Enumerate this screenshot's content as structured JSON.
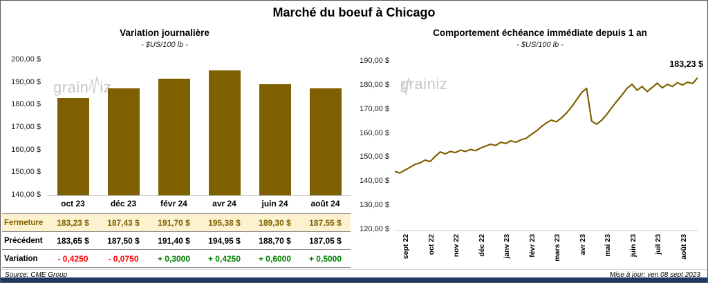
{
  "page": {
    "title": "Marché du boeuf à Chicago",
    "source": "Source: CME Group",
    "updated": "Mise à jour: ven 08 sept 2023",
    "watermark": {
      "prefix": "grain",
      "suffix": "iz"
    },
    "colors": {
      "accent": "#7F6000",
      "negative": "#FF0000",
      "positive": "#008000",
      "fermeture_bg": "#FCF2CF",
      "strip": "#203864"
    }
  },
  "chart_data": [
    {
      "type": "bar",
      "title": "Variation  journalière",
      "subtitle": "- $US/100 lb -",
      "categories": [
        "oct 23",
        "déc 23",
        "févr 24",
        "avr 24",
        "juin 24",
        "août 24"
      ],
      "values": [
        183.23,
        187.43,
        191.7,
        195.38,
        189.3,
        187.55
      ],
      "ylim": [
        140,
        200
      ],
      "yticks": [
        "200,00 $",
        "190,00 $",
        "180,00 $",
        "170,00 $",
        "160,00 $",
        "150,00 $",
        "140,00 $"
      ],
      "bar_color": "#7F6000",
      "grid": false,
      "table": {
        "rows": [
          {
            "style": "fermeture",
            "label": "Fermeture",
            "values": [
              "183,23  $",
              "187,43  $",
              "191,70  $",
              "195,38  $",
              "189,30  $",
              "187,55  $"
            ]
          },
          {
            "style": "precedent",
            "label": "Précédent",
            "values": [
              "183,65  $",
              "187,50  $",
              "191,40  $",
              "194,95  $",
              "188,70  $",
              "187,05  $"
            ]
          },
          {
            "style": "variation",
            "label": "Variation",
            "values": [
              "- 0,4250",
              "- 0,0750",
              "+ 0,3000",
              "+ 0,4250",
              "+ 0,6000",
              "+ 0,5000"
            ],
            "colors": [
              "neg",
              "neg",
              "pos",
              "pos",
              "pos",
              "pos"
            ]
          }
        ]
      }
    },
    {
      "type": "line",
      "title": "Comportement  échéance  immédiate  depuis 1 an",
      "subtitle": "- $US/100 lb -",
      "x_labels": [
        "sept 22",
        "oct 22",
        "nov 22",
        "déc 22",
        "janv 23",
        "févr 23",
        "mars 23",
        "avr 23",
        "mai 23",
        "juin 23",
        "juil 23",
        "août 23"
      ],
      "ylim": [
        120,
        190
      ],
      "yticks": [
        "190,00 $",
        "180,00 $",
        "170,00 $",
        "160,00 $",
        "150,00 $",
        "140,00 $",
        "130,00 $",
        "120,00 $"
      ],
      "line_color": "#7F6000",
      "end_label": "183,23 $",
      "grid": false,
      "values": [
        144.3,
        143.6,
        144.8,
        146.0,
        147.2,
        147.8,
        149.0,
        148.4,
        150.5,
        152.4,
        151.6,
        152.6,
        152.1,
        153.1,
        152.6,
        153.4,
        152.9,
        154.0,
        154.8,
        155.6,
        155.1,
        156.4,
        155.9,
        157.0,
        156.4,
        157.4,
        158.0,
        159.6,
        161.0,
        162.8,
        164.4,
        165.6,
        164.9,
        166.5,
        168.5,
        171.0,
        174.0,
        177.0,
        178.8,
        165.2,
        163.9,
        165.6,
        168.0,
        170.8,
        173.5,
        176.0,
        178.8,
        180.5,
        178.0,
        179.6,
        177.5,
        179.2,
        181.0,
        179.0,
        180.5,
        179.6,
        181.2,
        180.2,
        181.4,
        180.8,
        183.23
      ]
    }
  ]
}
